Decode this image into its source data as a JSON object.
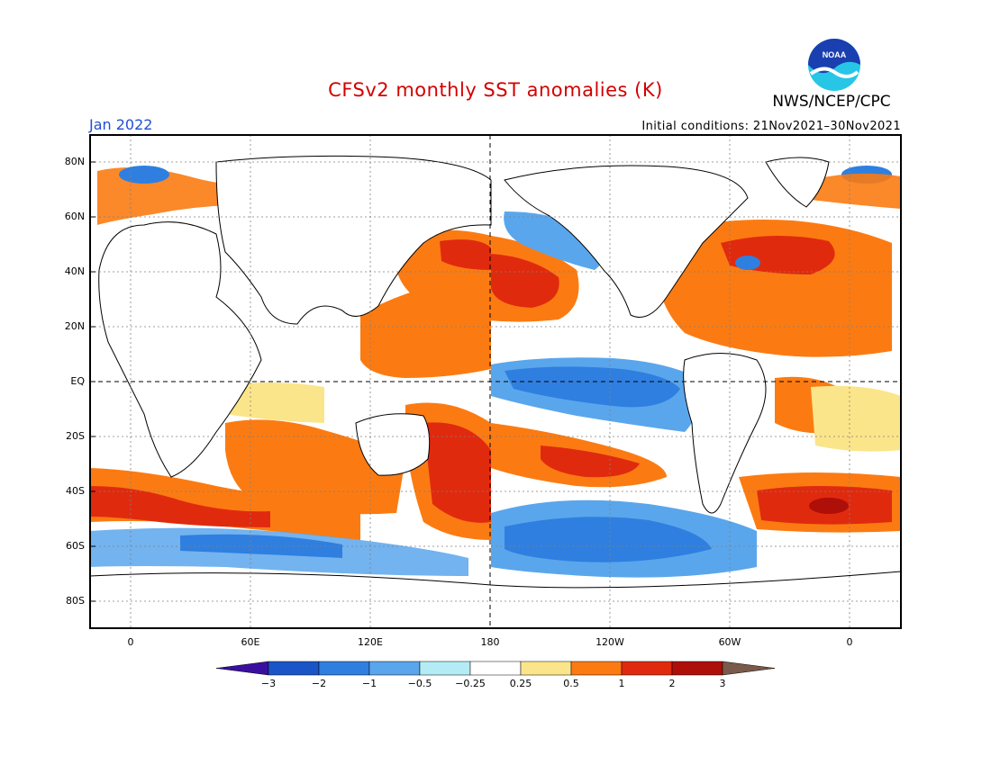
{
  "title": "CFSv2 monthly SST anomalies (K)",
  "agency": "NWS/NCEP/CPC",
  "logo_text": "NOAA",
  "month_label": "Jan 2022",
  "initial_conditions": "Initial conditions: 21Nov2021–30Nov2021",
  "lat_labels": [
    "80N",
    "60N",
    "40N",
    "20N",
    "EQ",
    "20S",
    "40S",
    "60S",
    "80S"
  ],
  "lon_labels": [
    "0",
    "60E",
    "120E",
    "180",
    "120W",
    "60W",
    "0"
  ],
  "colorbar": {
    "tick_labels": [
      "−3",
      "−2",
      "−1",
      "−0.5",
      "−0.25",
      "0.25",
      "0.5",
      "1",
      "2",
      "3"
    ],
    "colors": [
      "#3a0fa0",
      "#1a55c8",
      "#2f7fe0",
      "#5aa6ec",
      "#b3ecf4",
      "#ffffff",
      "#fbe58a",
      "#fb7b12",
      "#e02a0e",
      "#ae0f08",
      "#7a5a4a"
    ]
  }
}
